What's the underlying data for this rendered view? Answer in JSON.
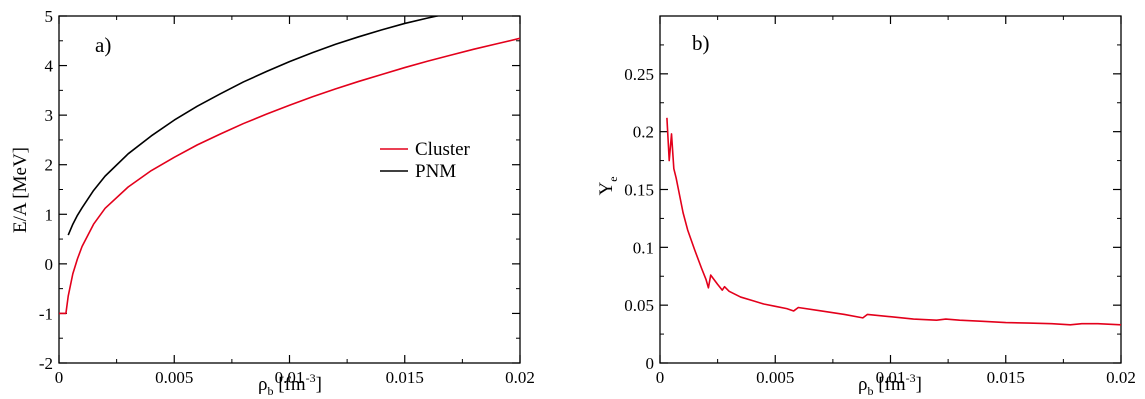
{
  "chart_data": [
    {
      "type": "line",
      "panel_label": "a)",
      "xlabel": {
        "main": "ρ",
        "sub": "b",
        "unit": " [fm",
        "exp": "-3",
        "close": "]"
      },
      "ylabel": "E/A [MeV]",
      "xlim": [
        0,
        0.02
      ],
      "ylim": [
        -2,
        5
      ],
      "x_ticks": [
        "0",
        "0.005",
        "0.01",
        "0.015",
        "0.02"
      ],
      "x_tick_values": [
        0,
        0.005,
        0.01,
        0.015,
        0.02
      ],
      "y_ticks": [
        "-2",
        "-1",
        "0",
        "1",
        "2",
        "3",
        "4",
        "5"
      ],
      "y_tick_values": [
        -2,
        -1,
        0,
        1,
        2,
        3,
        4,
        5
      ],
      "legend_position": "right-middle",
      "series": [
        {
          "name": "Cluster",
          "color": "#e3001b",
          "x": [
            0.0,
            0.0003,
            0.0004,
            0.0006,
            0.0008,
            0.001,
            0.0015,
            0.002,
            0.003,
            0.004,
            0.005,
            0.006,
            0.007,
            0.008,
            0.009,
            0.01,
            0.011,
            0.012,
            0.013,
            0.014,
            0.015,
            0.016,
            0.017,
            0.018,
            0.019,
            0.02
          ],
          "y": [
            -1.0,
            -1.0,
            -0.65,
            -0.2,
            0.1,
            0.35,
            0.8,
            1.12,
            1.55,
            1.88,
            2.15,
            2.4,
            2.62,
            2.83,
            3.02,
            3.2,
            3.37,
            3.53,
            3.68,
            3.82,
            3.96,
            4.09,
            4.21,
            4.33,
            4.44,
            4.55
          ]
        },
        {
          "name": "PNM",
          "color": "#000000",
          "x": [
            0.0004,
            0.0006,
            0.0008,
            0.001,
            0.0015,
            0.002,
            0.003,
            0.004,
            0.005,
            0.006,
            0.007,
            0.008,
            0.009,
            0.01,
            0.011,
            0.012,
            0.013,
            0.014,
            0.015,
            0.016,
            0.017,
            0.0178
          ],
          "y": [
            0.58,
            0.8,
            0.98,
            1.13,
            1.48,
            1.77,
            2.22,
            2.58,
            2.9,
            3.18,
            3.43,
            3.67,
            3.88,
            4.08,
            4.26,
            4.43,
            4.58,
            4.72,
            4.85,
            4.96,
            5.06,
            5.13
          ]
        }
      ]
    },
    {
      "type": "line",
      "panel_label": "b)",
      "xlabel": {
        "main": "ρ",
        "sub": "b",
        "unit": " [fm",
        "exp": "-3",
        "close": "]"
      },
      "ylabel": {
        "main": "Y",
        "sub": "e"
      },
      "xlim": [
        0,
        0.02
      ],
      "ylim": [
        0,
        0.3
      ],
      "x_ticks": [
        "0",
        "0.005",
        "0.01",
        "0.015",
        "0.02"
      ],
      "x_tick_values": [
        0,
        0.005,
        0.01,
        0.015,
        0.02
      ],
      "y_ticks": [
        "0",
        "0.05",
        "0.1",
        "0.15",
        "0.2",
        "0.25"
      ],
      "y_tick_values": [
        0,
        0.05,
        0.1,
        0.15,
        0.2,
        0.25
      ],
      "series": [
        {
          "name": "",
          "color": "#e3001b",
          "x": [
            0.0003,
            0.0004,
            0.0005,
            0.0006,
            0.0007,
            0.0008,
            0.001,
            0.0012,
            0.0015,
            0.0018,
            0.002,
            0.0021,
            0.0022,
            0.0025,
            0.0027,
            0.0028,
            0.003,
            0.0035,
            0.004,
            0.0045,
            0.005,
            0.0055,
            0.0058,
            0.006,
            0.007,
            0.008,
            0.0088,
            0.009,
            0.01,
            0.011,
            0.012,
            0.0124,
            0.013,
            0.014,
            0.015,
            0.016,
            0.017,
            0.0178,
            0.0183,
            0.019,
            0.02
          ],
          "y": [
            0.212,
            0.175,
            0.198,
            0.168,
            0.16,
            0.15,
            0.13,
            0.115,
            0.098,
            0.082,
            0.072,
            0.065,
            0.076,
            0.068,
            0.063,
            0.066,
            0.062,
            0.057,
            0.054,
            0.051,
            0.049,
            0.047,
            0.045,
            0.048,
            0.045,
            0.042,
            0.039,
            0.042,
            0.04,
            0.038,
            0.037,
            0.038,
            0.037,
            0.036,
            0.035,
            0.0345,
            0.034,
            0.033,
            0.034,
            0.034,
            0.033
          ]
        }
      ]
    }
  ]
}
